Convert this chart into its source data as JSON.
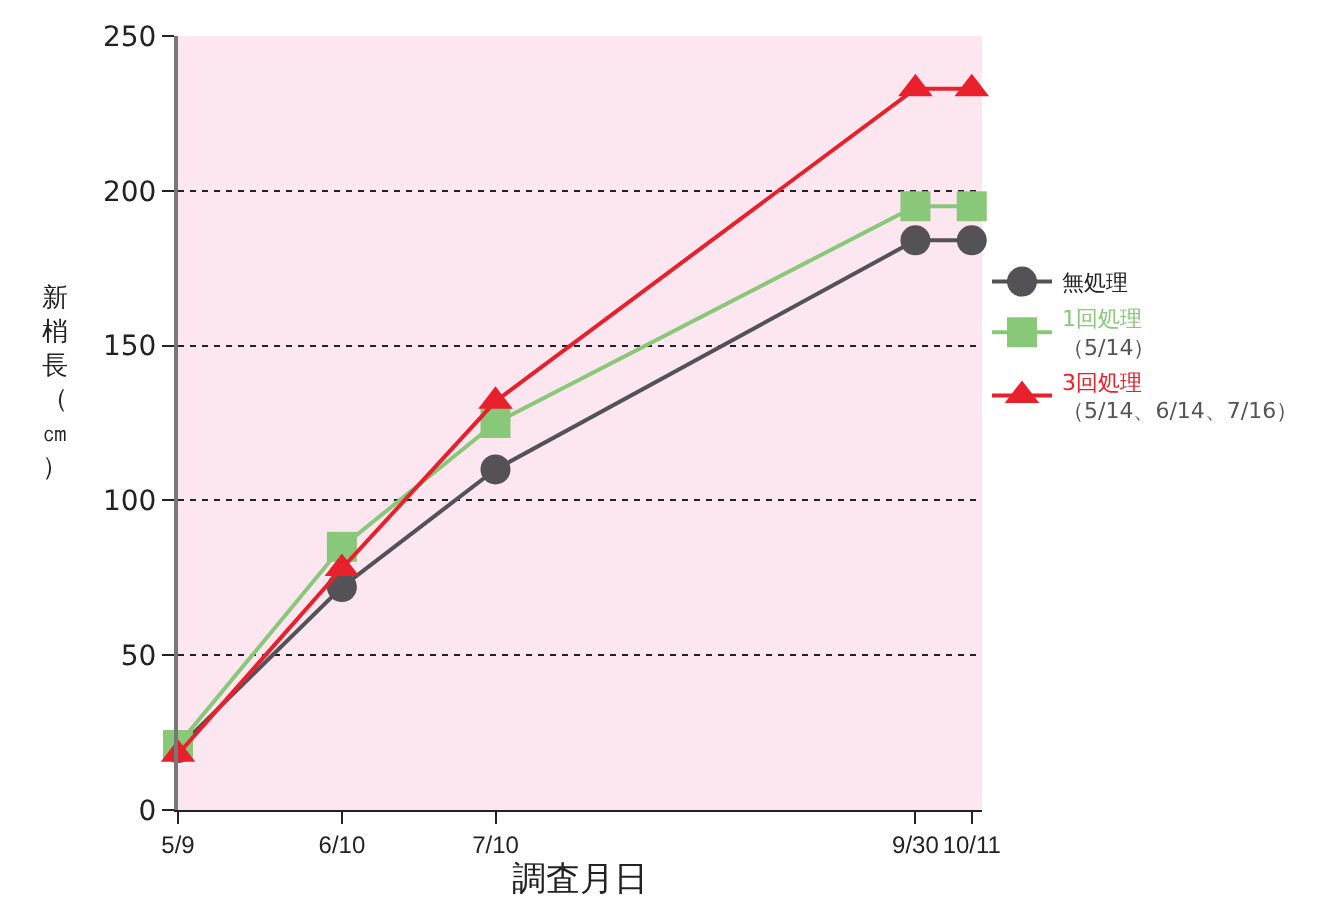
{
  "chart_data": {
    "type": "line",
    "xlabel": "調査月日",
    "ylabel": "新梢長（㎝）",
    "x": [
      "--05-09",
      "--06-10",
      "--07-10",
      "--09-30",
      "--10-11"
    ],
    "xlim": [
      "--05-09",
      "--10-13"
    ],
    "xticks": [
      {
        "value": "--05-09",
        "label": "5/9"
      },
      {
        "value": "--06-10",
        "label": "6/10"
      },
      {
        "value": "--07-10",
        "label": "7/10"
      },
      {
        "value": "--09-30",
        "label": "9/30"
      },
      {
        "value": "--10-11",
        "label": "10/11"
      }
    ],
    "ylim": [
      0,
      250
    ],
    "yticks": [
      0,
      50,
      100,
      150,
      200,
      250
    ],
    "grid": "y",
    "legend": "right",
    "line_style": "solid",
    "series": [
      {
        "name": "無処理",
        "color": "#545256",
        "marker": "circle",
        "values": [
          20,
          72,
          110,
          184,
          184
        ]
      },
      {
        "name": "1回処理（5/14）",
        "color": "#88c878",
        "marker": "square",
        "values": [
          21,
          85,
          125,
          195,
          195
        ]
      },
      {
        "name": "3回処理（5/14、6/14、7/16）",
        "color": "#e8202c",
        "marker": "triangle",
        "values": [
          18,
          78,
          132,
          233,
          233
        ]
      }
    ]
  }
}
